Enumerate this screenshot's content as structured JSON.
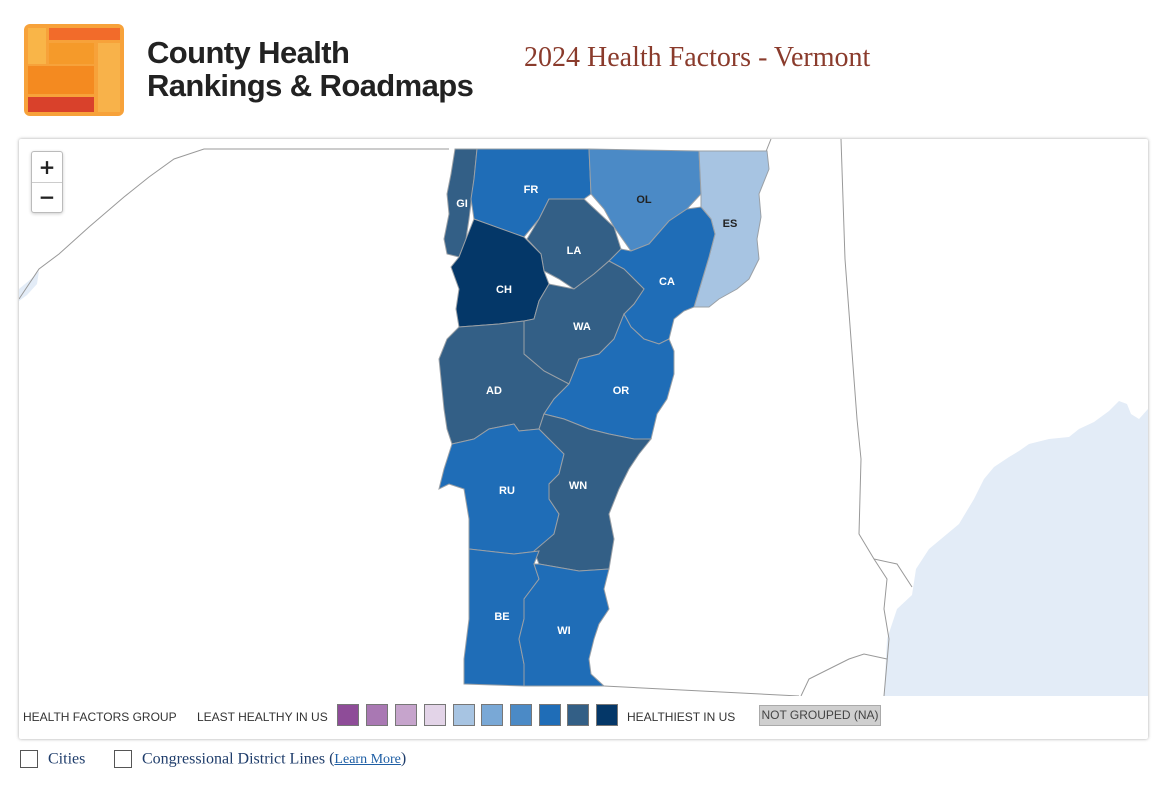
{
  "header": {
    "brand_line1": "County Health",
    "brand_line2": "Rankings & Roadmaps",
    "title": "2024 Health Factors - Vermont"
  },
  "zoom": {
    "in_label": "+",
    "out_label": "−"
  },
  "colors": {
    "group_scale": [
      "#8e4c98",
      "#a978b3",
      "#c6a4cc",
      "#e3d4e8",
      "#a7c4e2",
      "#79a8d6",
      "#4b8ac6",
      "#1f6db7",
      "#335f86",
      "#043768"
    ],
    "not_grouped": "#cfcfcf",
    "water": "#e3ecf7"
  },
  "legend": {
    "title": "HEALTH FACTORS GROUP",
    "least": "LEAST HEALTHY IN US",
    "healthiest": "HEALTHIEST IN US",
    "not_grouped": "NOT GROUPED (NA)"
  },
  "counties": [
    {
      "abbr": "GI",
      "group": 9,
      "label_color": "#ffffff"
    },
    {
      "abbr": "FR",
      "group": 8,
      "label_color": "#ffffff"
    },
    {
      "abbr": "OL",
      "group": 7,
      "label_color": "#222222"
    },
    {
      "abbr": "ES",
      "group": 5,
      "label_color": "#222222"
    },
    {
      "abbr": "LA",
      "group": 9,
      "label_color": "#ffffff"
    },
    {
      "abbr": "CH",
      "group": 10,
      "label_color": "#ffffff"
    },
    {
      "abbr": "CA",
      "group": 8,
      "label_color": "#ffffff"
    },
    {
      "abbr": "WA",
      "group": 9,
      "label_color": "#ffffff"
    },
    {
      "abbr": "AD",
      "group": 9,
      "label_color": "#ffffff"
    },
    {
      "abbr": "OR",
      "group": 8,
      "label_color": "#ffffff"
    },
    {
      "abbr": "RU",
      "group": 8,
      "label_color": "#ffffff"
    },
    {
      "abbr": "WN",
      "group": 9,
      "label_color": "#ffffff"
    },
    {
      "abbr": "BE",
      "group": 8,
      "label_color": "#ffffff"
    },
    {
      "abbr": "WI",
      "group": 8,
      "label_color": "#ffffff"
    }
  ],
  "options": {
    "cities": "Cities",
    "districts": "Congressional District Lines",
    "learn_more": "Learn More"
  }
}
